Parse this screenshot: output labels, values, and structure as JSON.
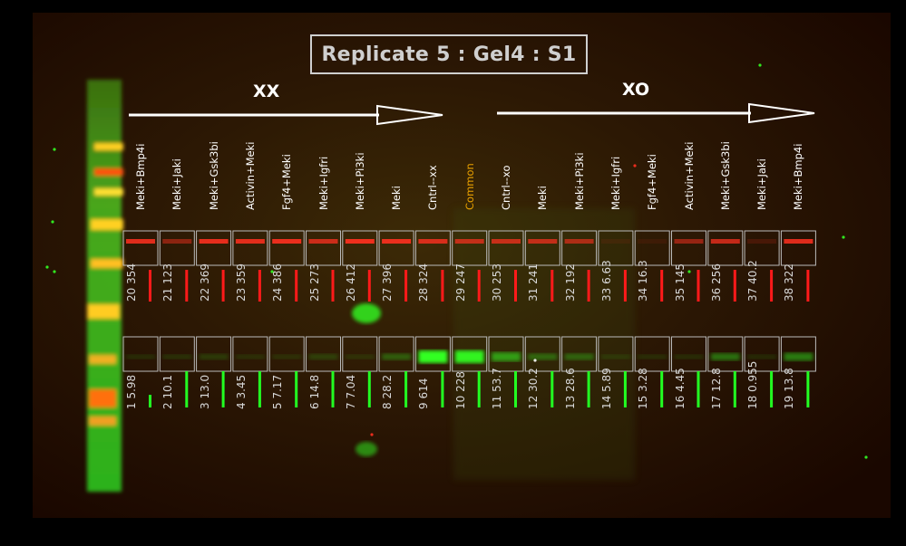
{
  "title": "Replicate 5 : Gel4 : S1",
  "groups": [
    {
      "label": "XX"
    },
    {
      "label": "XO"
    }
  ],
  "lanes": [
    {
      "label": "Meki+Bmp4i",
      "color": "#ffffff",
      "top_id": "20",
      "top_val": "354",
      "top_int": 0.85,
      "bot_id": "1",
      "bot_val": "5.98",
      "bot_int": 0.1
    },
    {
      "label": "Meki+Jaki",
      "color": "#ffffff",
      "top_id": "21",
      "top_val": "123",
      "top_int": 0.45,
      "bot_id": "2",
      "bot_val": "10.1",
      "bot_int": 0.14
    },
    {
      "label": "Meki+Gsk3bi",
      "color": "#ffffff",
      "top_id": "22",
      "top_val": "369",
      "top_int": 0.88,
      "bot_id": "3",
      "bot_val": "13.0",
      "bot_int": 0.17
    },
    {
      "label": "Activin+Meki",
      "color": "#ffffff",
      "top_id": "23",
      "top_val": "359",
      "top_int": 0.86,
      "bot_id": "4",
      "bot_val": "3.45",
      "bot_int": 0.08
    },
    {
      "label": "Fgf4+Meki",
      "color": "#ffffff",
      "top_id": "24",
      "top_val": "386",
      "top_int": 0.9,
      "bot_id": "5",
      "bot_val": "7.17",
      "bot_int": 0.12
    },
    {
      "label": "Meki+Igfri",
      "color": "#ffffff",
      "top_id": "25",
      "top_val": "273",
      "top_int": 0.75,
      "bot_id": "6",
      "bot_val": "14.8",
      "bot_int": 0.18
    },
    {
      "label": "Meki+Pi3ki",
      "color": "#ffffff",
      "top_id": "26",
      "top_val": "412",
      "top_int": 0.92,
      "bot_id": "7",
      "bot_val": "7.04",
      "bot_int": 0.12
    },
    {
      "label": "Meki",
      "color": "#ffffff",
      "top_id": "27",
      "top_val": "396",
      "top_int": 0.9,
      "bot_id": "8",
      "bot_val": "28.2",
      "bot_int": 0.3
    },
    {
      "label": "Cntrl--xx",
      "color": "#ffffff",
      "top_id": "28",
      "top_val": "324",
      "top_int": 0.8,
      "bot_id": "9",
      "bot_val": "614",
      "bot_int": 1.0
    },
    {
      "label": "Common",
      "color": "#e8a000",
      "top_id": "29",
      "top_val": "247",
      "top_int": 0.7,
      "bot_id": "10",
      "bot_val": "228",
      "bot_int": 0.95
    },
    {
      "label": "Cntrl--xo",
      "color": "#ffffff",
      "top_id": "30",
      "top_val": "253",
      "top_int": 0.72,
      "bot_id": "11",
      "bot_val": "53.7",
      "bot_int": 0.55
    },
    {
      "label": "Meki",
      "color": "#ffffff",
      "top_id": "31",
      "top_val": "241",
      "top_int": 0.7,
      "bot_id": "12",
      "bot_val": "30.2",
      "bot_int": 0.32
    },
    {
      "label": "Meki+Pi3ki",
      "color": "#ffffff",
      "top_id": "32",
      "top_val": "192",
      "top_int": 0.6,
      "bot_id": "13",
      "bot_val": "28.6",
      "bot_int": 0.3
    },
    {
      "label": "Meki+Igfri",
      "color": "#ffffff",
      "top_id": "33",
      "top_val": "6.63",
      "top_int": 0.05,
      "bot_id": "14",
      "bot_val": "5.89",
      "bot_int": 0.1
    },
    {
      "label": "Fgf4+Meki",
      "color": "#ffffff",
      "top_id": "34",
      "top_val": "16.3",
      "top_int": 0.08,
      "bot_id": "15",
      "bot_val": "3.28",
      "bot_int": 0.07
    },
    {
      "label": "Activin+Meki",
      "color": "#ffffff",
      "top_id": "35",
      "top_val": "145",
      "top_int": 0.5,
      "bot_id": "16",
      "bot_val": "4.45",
      "bot_int": 0.09
    },
    {
      "label": "Meki+Gsk3bi",
      "color": "#ffffff",
      "top_id": "36",
      "top_val": "256",
      "top_int": 0.72,
      "bot_id": "17",
      "bot_val": "12.8",
      "bot_int": 0.4
    },
    {
      "label": "Meki+Jaki",
      "color": "#ffffff",
      "top_id": "37",
      "top_val": "40.2",
      "top_int": 0.15,
      "bot_id": "18",
      "bot_val": "0.955",
      "bot_int": 0.05
    },
    {
      "label": "Meki+Bmp4i",
      "color": "#ffffff",
      "top_id": "38",
      "top_val": "322",
      "top_int": 0.85,
      "bot_id": "19",
      "bot_val": "13.8",
      "bot_int": 0.45
    }
  ],
  "colors": {
    "background": "#2a1600",
    "top_band": "#ff3020",
    "bottom_band": "#33ff22",
    "top_bar": "#ff1a1a",
    "bottom_bar": "#22ff22",
    "box_outline": "#bbbbbb"
  }
}
